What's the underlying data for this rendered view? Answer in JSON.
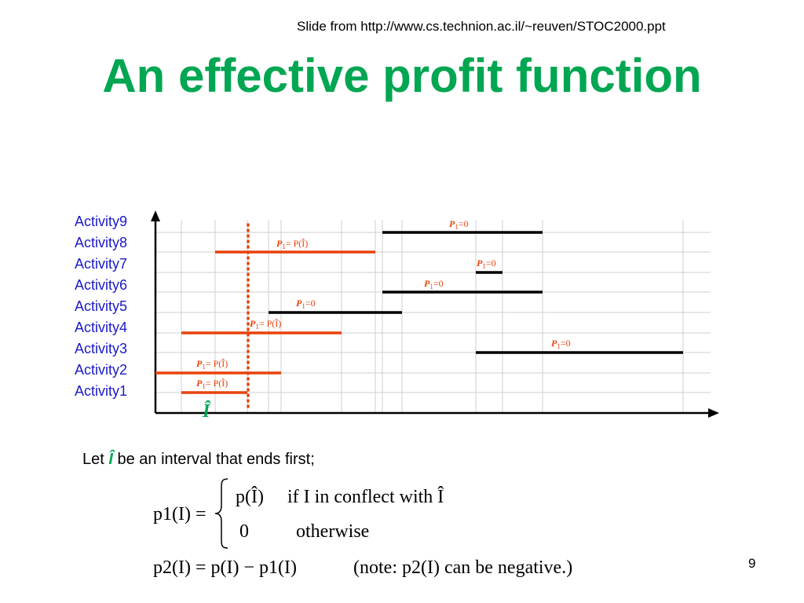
{
  "slide": {
    "source": "Slide from http://www.cs.technion.ac.il/~reuven/STOC2000.ppt",
    "title": "An effective profit function",
    "page_number": "9"
  },
  "activities": [
    "Activity9",
    "Activity8",
    "Activity7",
    "Activity6",
    "Activity5",
    "Activity4",
    "Activity3",
    "Activity2",
    "Activity1"
  ],
  "intervals": [
    {
      "activity": "Activity9",
      "annotation": "=0",
      "color": "#000000"
    },
    {
      "activity": "Activity8",
      "annotation": "= P(Î)",
      "color": "#e8420c"
    },
    {
      "activity": "Activity7",
      "annotation": "=0",
      "color": "#000000"
    },
    {
      "activity": "Activity6",
      "annotation": "=0",
      "color": "#000000"
    },
    {
      "activity": "Activity5",
      "annotation": "=0",
      "color": "#000000"
    },
    {
      "activity": "Activity4",
      "annotation": "= P(Î)",
      "color": "#e8420c"
    },
    {
      "activity": "Activity3",
      "annotation": "=0",
      "color": "#000000"
    },
    {
      "activity": "Activity2",
      "annotation": "= P(Î)",
      "color": "#e8420c"
    },
    {
      "activity": "Activity1",
      "annotation": "= P(Î)",
      "color": "#e8420c"
    }
  ],
  "annotation_prefix": "P",
  "annotation_sub": "1",
  "ihat_label": "Î",
  "colors": {
    "title": "#00a651",
    "labels": "#1a1ac8",
    "highlight": "#e8420c",
    "ihat": "#00a651"
  },
  "text": {
    "let_prefix": "Let",
    "let_symbol": "Î",
    "let_suffix": "be an interval that ends first;"
  },
  "formula": {
    "case1_value": "p(Î)",
    "case1_condition": "if I in conflect with Î",
    "case2_value": "0",
    "case2_condition": "otherwise",
    "p1_lhs": "p1(I) =",
    "p2_line": "p2(I) = p(I) − p1(I)",
    "note": "(note: p2(I) can be negative.)"
  }
}
